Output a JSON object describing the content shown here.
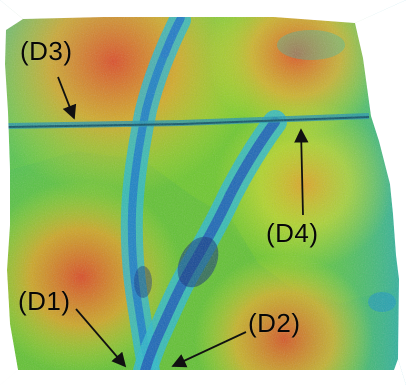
{
  "figure": {
    "labels": {
      "d1": "(D1)",
      "d2": "(D2)",
      "d3": "(D3)",
      "d4": "(D4)"
    },
    "palette": {
      "deep": "#0d2b78",
      "low": "#16a8d6",
      "mid_low": "#21c773",
      "mid": "#6bc82a",
      "mid_high": "#d7e22b",
      "high": "#f4a122",
      "peak": "#df3d20",
      "background": "#ffffff"
    }
  }
}
